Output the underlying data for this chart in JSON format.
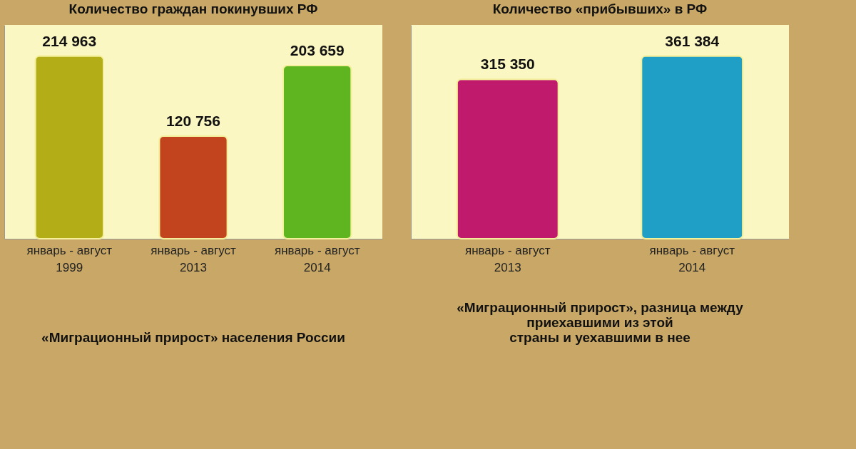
{
  "chart_data": [
    {
      "type": "bar",
      "title": "Количество граждан покинувших РФ",
      "categories": [
        "январь - август 1999",
        "январь - август 2013",
        "январь - август 2014"
      ],
      "values": [
        214963,
        120756,
        203659
      ],
      "colors": [
        "#b3ad18",
        "#c2441f",
        "#5fb51f"
      ],
      "value_labels": [
        "214 963",
        "120 756",
        "203 659"
      ],
      "tick_labels": "x"
    },
    {
      "type": "bar",
      "title": "Количество «прибывших» в РФ",
      "categories": [
        "январь - август 2013",
        "январь - август 2014"
      ],
      "values": [
        315350,
        361384
      ],
      "colors": [
        "#c01a6c",
        "#1f9fc6"
      ],
      "value_labels": [
        "315 350",
        "361 384"
      ],
      "tick_labels": "x"
    },
    {
      "type": "other",
      "title": "«Миграционный прирост» населения России"
    },
    {
      "type": "other",
      "title": "«Миграционный прирост», разница между\nприехавшими из этой\nстраны и уехавшими в нее"
    }
  ]
}
